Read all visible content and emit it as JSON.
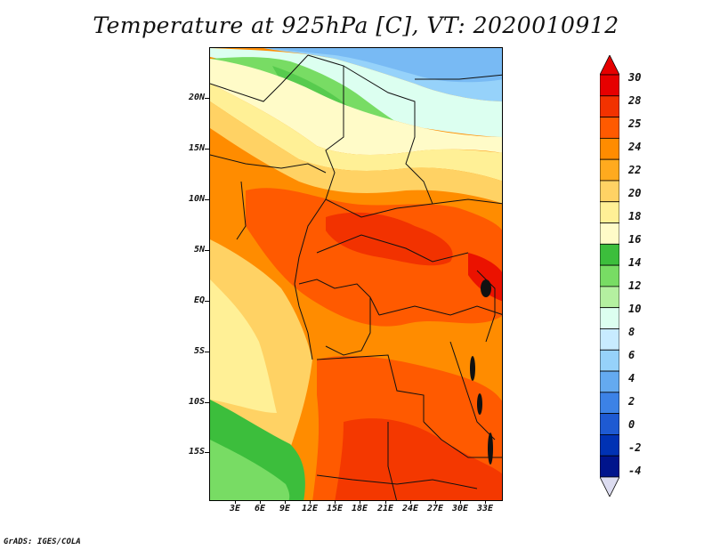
{
  "title": "Temperature at 925hPa [C], VT: 2020010912",
  "credit": "GrADS: IGES/COLA",
  "y_axis": [
    "20N",
    "15N",
    "10N",
    "5N",
    "EQ",
    "5S",
    "10S",
    "15S"
  ],
  "x_axis": [
    "3E",
    "6E",
    "9E",
    "12E",
    "15E",
    "18E",
    "21E",
    "24E",
    "27E",
    "30E",
    "33E"
  ],
  "colorbar": {
    "labels": [
      "30",
      "28",
      "25",
      "24",
      "22",
      "20",
      "18",
      "16",
      "14",
      "12",
      "10",
      "8",
      "6",
      "4",
      "2",
      "0",
      "-2",
      "-4"
    ],
    "colors": [
      "#e60000",
      "#f23200",
      "#ff5a00",
      "#ff8c00",
      "#ffaa1e",
      "#ffd264",
      "#fff096",
      "#fffbc8",
      "#3cbe3c",
      "#78dc64",
      "#b4f0a0",
      "#dcfff0",
      "#c8ebff",
      "#96d2fa",
      "#64aaf0",
      "#3c82e6",
      "#1e5ad2",
      "#0032b4",
      "#00148c"
    ],
    "lower_arrow_color": "#dcdcf0",
    "upper_arrow_color": "#e60000"
  }
}
